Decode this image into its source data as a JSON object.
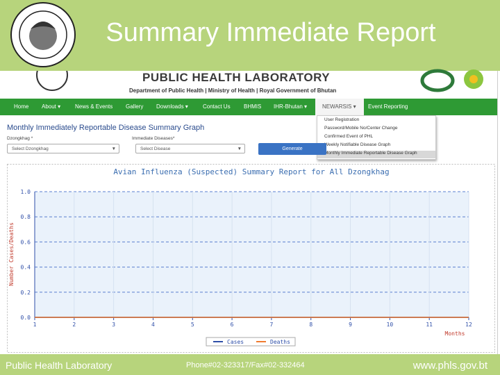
{
  "slide": {
    "title": "Summary Immediate Report",
    "footer": {
      "left": "Public Health Laboratory",
      "center": "Phone#02-323317/Fax#02-332464",
      "right": "www.phls.gov.bt"
    }
  },
  "site": {
    "name": "PUBLIC HEALTH LABORATORY",
    "subtitle": "Department of Public Health | Ministry of Health | Royal Government of Bhutan",
    "nav": [
      "Home",
      "About",
      "News & Events",
      "Gallery",
      "Downloads",
      "Contact Us",
      "BHMIS",
      "IHR-Bhutan",
      "NEWARSIS",
      "Event Reporting"
    ],
    "dropdown": [
      "User Registration",
      "Password/Mobile No/Center Change",
      "Confirmed Event of PHL",
      "Weekly Notifiable Disease Graph",
      "Monthly Immediate Reportable Disease Graph"
    ]
  },
  "form": {
    "title": "Monthly Immediately Reportable Disease Summary Graph",
    "dzongkhag_label": "Dzongkhag *",
    "dzongkhag_placeholder": "Select Dzongkhag",
    "disease_label": "Immediate Diseases*",
    "disease_placeholder": "Select Disease",
    "button": "Generate"
  },
  "chart_data": {
    "type": "line",
    "title": "Avian Influenza (Suspected) Summary Report for All Dzongkhag",
    "y_label": "Number Cases/Deaths",
    "x_label": "Months",
    "x": [
      1,
      2,
      3,
      4,
      5,
      6,
      7,
      8,
      9,
      10,
      11,
      12
    ],
    "series": [
      {
        "name": "Cases",
        "color": "#2f4fa8",
        "values": [
          0,
          0,
          0,
          0,
          0,
          0,
          0,
          0,
          0,
          0,
          0,
          0
        ]
      },
      {
        "name": "Deaths",
        "color": "#f07c30",
        "values": [
          0,
          0,
          0,
          0,
          0,
          0,
          0,
          0,
          0,
          0,
          0,
          0
        ]
      }
    ],
    "xlim": [
      1,
      12
    ],
    "xticks": [
      1,
      2,
      3,
      4,
      5,
      6,
      7,
      8,
      9,
      10,
      11,
      12
    ],
    "ylim": [
      0,
      1
    ],
    "yticks": [
      {
        "value": 0,
        "label": "0.0"
      },
      0.2,
      0.4,
      0.6,
      0.8,
      {
        "value": 1,
        "label": "1.0"
      }
    ],
    "grid": true
  }
}
